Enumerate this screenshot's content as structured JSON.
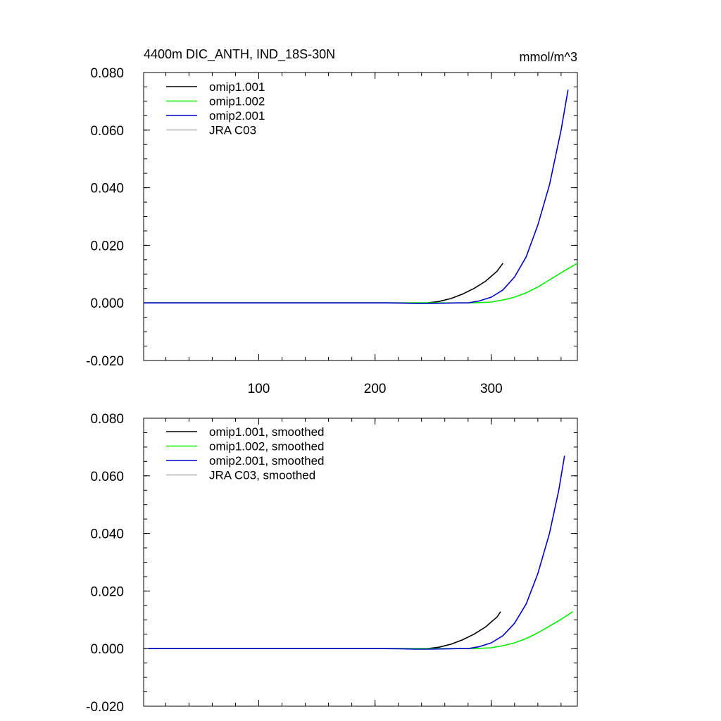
{
  "chart_data": [
    {
      "type": "line",
      "title": "4400m DIC_ANTH, IND_18S-30N",
      "units": "mmol/m^3",
      "xlim": [
        1,
        374
      ],
      "ylim": [
        -0.02,
        0.08
      ],
      "x_ticks": [
        100,
        200,
        300
      ],
      "x_tick_labels": [
        "100",
        "200",
        "300"
      ],
      "x_minor_step": 20,
      "y_ticks": [
        -0.02,
        0.0,
        0.02,
        0.04,
        0.06,
        0.08
      ],
      "y_tick_labels": [
        "-0.020",
        "0.000",
        "0.020",
        "0.040",
        "0.060",
        "0.080"
      ],
      "y_minor_step": 0.005,
      "legend_position": "top-left",
      "series": [
        {
          "name": "omip1.001",
          "color": "#000000",
          "x": [
            1,
            200,
            230,
            245,
            255,
            265,
            275,
            285,
            295,
            305,
            310
          ],
          "y": [
            0,
            0,
            0,
            0,
            0.0005,
            0.0015,
            0.003,
            0.005,
            0.0075,
            0.011,
            0.0138
          ]
        },
        {
          "name": "omip1.002",
          "color": "#00ee00",
          "x": [
            1,
            200,
            260,
            280,
            290,
            300,
            310,
            320,
            330,
            340,
            350,
            360,
            374
          ],
          "y": [
            0,
            0,
            0,
            0,
            0.0001,
            0.0003,
            0.001,
            0.002,
            0.0035,
            0.0055,
            0.008,
            0.0105,
            0.0138
          ]
        },
        {
          "name": "omip2.001",
          "color": "#0000cc",
          "x": [
            1,
            210,
            225,
            235,
            245,
            260,
            270,
            280,
            290,
            300,
            310,
            320,
            330,
            340,
            350,
            360,
            366
          ],
          "y": [
            0,
            0,
            -0.0001,
            -0.0002,
            -0.0002,
            -0.0001,
            0,
            0,
            0.0007,
            0.002,
            0.0045,
            0.009,
            0.016,
            0.027,
            0.041,
            0.06,
            0.074
          ]
        },
        {
          "name": "JRA C03",
          "color": "#b3b3b3",
          "x": [],
          "y": []
        }
      ]
    },
    {
      "type": "line",
      "xlim": [
        1,
        374
      ],
      "ylim": [
        -0.02,
        0.08
      ],
      "x_ticks": [
        100,
        200,
        300
      ],
      "x_minor_step": 20,
      "y_ticks": [
        -0.02,
        0.0,
        0.02,
        0.04,
        0.06,
        0.08
      ],
      "y_tick_labels": [
        "-0.020",
        "0.000",
        "0.020",
        "0.040",
        "0.060",
        "0.080"
      ],
      "y_minor_step": 0.005,
      "legend_position": "top-left",
      "series": [
        {
          "name": "omip1.001, smoothed",
          "color": "#000000",
          "x": [
            5,
            200,
            235,
            245,
            255,
            265,
            275,
            285,
            295,
            305,
            308
          ],
          "y": [
            0,
            0,
            0,
            0,
            0.0005,
            0.0015,
            0.003,
            0.005,
            0.0075,
            0.011,
            0.0128
          ]
        },
        {
          "name": "omip1.002, smoothed",
          "color": "#00ee00",
          "x": [
            5,
            200,
            260,
            280,
            290,
            300,
            310,
            320,
            330,
            340,
            350,
            360,
            370
          ],
          "y": [
            0,
            0,
            0,
            0,
            0.0001,
            0.0003,
            0.001,
            0.002,
            0.0035,
            0.0055,
            0.0078,
            0.0102,
            0.0128
          ]
        },
        {
          "name": "omip2.001, smoothed",
          "color": "#0000cc",
          "x": [
            5,
            210,
            225,
            235,
            245,
            260,
            270,
            280,
            290,
            300,
            310,
            320,
            330,
            340,
            350,
            358,
            363
          ],
          "y": [
            0,
            0,
            -0.0001,
            -0.0002,
            -0.0002,
            -0.0001,
            0,
            0,
            0.0007,
            0.002,
            0.0045,
            0.0088,
            0.0155,
            0.026,
            0.04,
            0.055,
            0.067
          ]
        },
        {
          "name": "JRA C03, smoothed",
          "color": "#b3b3b3",
          "x": [],
          "y": []
        }
      ]
    }
  ]
}
